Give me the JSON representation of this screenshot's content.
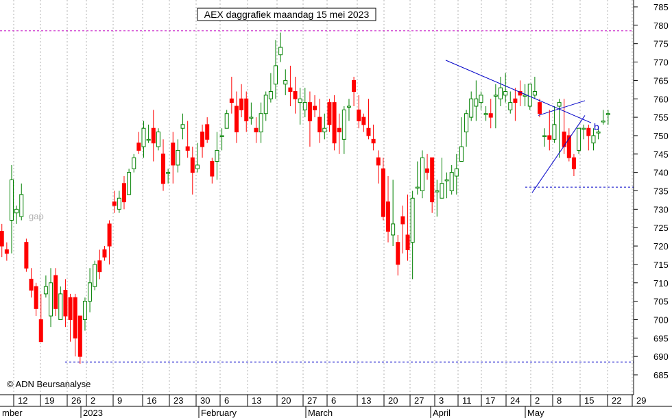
{
  "chart_data": {
    "type": "candlestick",
    "title": "AEX daggrafiek maandag 15 mei 2023",
    "watermark": "gap",
    "copyright": "© ADN Beursanalyse",
    "colors": {
      "up": "#008000",
      "down": "#ff0000",
      "grid": "#b0b0b0",
      "trend": "#0000c8",
      "resistance": "#c000c0",
      "support": "#0000c8"
    },
    "y_axis": {
      "min": 680,
      "max": 785,
      "step": 5,
      "side": "right"
    },
    "x_tick_labels": [
      "12",
      "19",
      "26",
      "2",
      "9",
      "16",
      "23",
      "30",
      "6",
      "13",
      "20",
      "27",
      "6",
      "13",
      "20",
      "27",
      "3",
      "11",
      "17",
      "24",
      "2",
      "8",
      "15",
      "22",
      "29"
    ],
    "month_labels": [
      "mber",
      "2023",
      "February",
      "March",
      "April",
      "May"
    ],
    "resistance_level": 778.5,
    "support_levels": [
      688.5,
      736
    ],
    "trend_label": "b",
    "candles": [
      [
        1,
        724,
        726,
        717,
        720
      ],
      [
        2,
        719,
        721,
        716,
        718
      ],
      [
        3,
        727,
        742,
        718,
        738
      ],
      [
        4,
        729,
        731,
        726,
        730
      ],
      [
        5,
        728,
        737,
        727,
        734
      ],
      [
        6,
        721,
        722,
        713,
        714
      ],
      [
        7,
        711,
        714,
        706,
        708
      ],
      [
        8,
        709,
        710,
        701,
        703
      ],
      [
        9,
        700,
        707,
        694,
        694
      ],
      [
        10,
        707,
        712,
        706,
        709
      ],
      [
        11,
        701,
        714,
        698,
        710
      ],
      [
        12,
        712,
        714,
        701,
        703
      ],
      [
        13,
        700,
        709,
        700,
        707
      ],
      [
        14,
        708,
        711,
        698,
        701
      ],
      [
        15,
        706,
        707,
        694,
        700
      ],
      [
        16,
        706,
        707,
        690,
        695
      ],
      [
        17,
        701,
        701,
        688,
        690
      ],
      [
        18,
        700,
        706,
        697,
        705
      ],
      [
        19,
        705,
        714,
        702,
        710
      ],
      [
        20,
        709,
        716,
        708,
        715
      ],
      [
        21,
        716,
        719,
        711,
        713
      ],
      [
        22,
        719,
        720,
        716,
        717
      ],
      [
        23,
        726,
        727,
        715,
        720
      ],
      [
        24,
        732,
        735,
        729,
        731
      ],
      [
        25,
        730,
        735,
        729,
        733
      ],
      [
        26,
        737,
        739,
        730,
        732
      ],
      [
        27,
        734,
        741,
        734,
        740
      ],
      [
        28,
        741,
        745,
        740,
        744
      ],
      [
        29,
        748,
        751,
        745,
        746
      ],
      [
        30,
        747,
        754,
        744,
        752
      ],
      [
        31,
        749,
        753,
        748,
        749
      ],
      [
        32,
        752,
        757,
        743,
        748
      ],
      [
        33,
        747,
        752,
        746,
        751
      ],
      [
        34,
        745,
        749,
        735,
        737
      ],
      [
        35,
        740,
        741,
        737,
        740
      ],
      [
        36,
        748,
        751,
        737,
        742
      ],
      [
        37,
        742,
        749,
        740,
        746
      ],
      [
        38,
        752,
        756,
        749,
        753
      ],
      [
        39,
        747,
        754,
        744,
        746
      ],
      [
        40,
        744,
        747,
        734,
        740
      ],
      [
        41,
        741,
        748,
        740,
        742
      ],
      [
        42,
        751,
        753,
        744,
        747
      ],
      [
        43,
        753,
        755,
        748,
        749
      ],
      [
        44,
        743,
        744,
        737,
        739
      ],
      [
        45,
        743,
        751,
        738,
        746
      ],
      [
        46,
        750,
        752,
        746,
        750
      ],
      [
        47,
        752,
        757,
        752,
        756
      ],
      [
        48,
        760,
        766,
        756,
        759
      ],
      [
        49,
        758,
        762,
        748,
        751
      ],
      [
        50,
        760,
        764,
        755,
        757
      ],
      [
        51,
        760,
        762,
        751,
        754
      ],
      [
        52,
        755,
        759,
        753,
        755
      ],
      [
        53,
        752,
        755,
        748,
        751
      ],
      [
        54,
        751,
        759,
        748,
        756
      ],
      [
        55,
        756,
        762,
        754,
        761
      ],
      [
        56,
        760,
        767,
        759,
        762
      ],
      [
        57,
        764,
        776,
        760,
        769
      ],
      [
        58,
        772,
        778,
        770,
        774
      ],
      [
        59,
        764,
        768,
        761,
        765
      ],
      [
        60,
        763,
        769,
        758,
        762
      ],
      [
        61,
        762,
        766,
        756,
        760
      ],
      [
        62,
        759,
        763,
        753,
        760
      ],
      [
        63,
        757,
        763,
        755,
        759
      ],
      [
        64,
        759,
        762,
        747,
        754
      ],
      [
        65,
        758,
        761,
        755,
        757
      ],
      [
        66,
        755,
        760,
        748,
        751
      ],
      [
        67,
        751,
        756,
        749,
        752
      ],
      [
        68,
        759,
        760,
        751,
        753
      ],
      [
        69,
        759,
        761,
        746,
        748
      ],
      [
        70,
        752,
        756,
        745,
        751
      ],
      [
        71,
        749,
        758,
        745,
        757
      ],
      [
        72,
        758,
        760,
        754,
        758
      ],
      [
        73,
        765,
        766,
        758,
        762
      ],
      [
        74,
        757,
        761,
        752,
        754
      ],
      [
        75,
        755,
        756,
        751,
        753
      ],
      [
        76,
        752,
        760,
        749,
        750
      ],
      [
        77,
        749,
        753,
        746,
        748
      ],
      [
        78,
        744,
        746,
        737,
        742
      ],
      [
        79,
        741,
        744,
        727,
        728
      ],
      [
        80,
        732,
        739,
        721,
        724
      ],
      [
        81,
        723,
        738,
        720,
        726
      ],
      [
        82,
        721,
        723,
        712,
        715
      ],
      [
        83,
        728,
        731,
        718,
        726
      ],
      [
        84,
        723,
        734,
        716,
        719
      ],
      [
        85,
        721,
        735,
        711,
        733
      ],
      [
        86,
        736,
        743,
        734,
        736
      ],
      [
        87,
        735,
        746,
        733,
        744
      ],
      [
        88,
        741,
        745,
        738,
        740
      ],
      [
        89,
        744,
        744,
        729,
        732
      ],
      [
        90,
        735,
        738,
        728,
        735
      ],
      [
        91,
        733,
        744,
        733,
        737
      ],
      [
        92,
        738,
        740,
        733,
        738
      ],
      [
        93,
        735,
        742,
        734,
        740
      ],
      [
        94,
        739,
        745,
        734,
        741
      ],
      [
        95,
        743,
        755,
        743,
        747
      ],
      [
        96,
        751,
        757,
        747,
        756
      ],
      [
        97,
        755,
        762,
        754,
        760
      ],
      [
        98,
        758,
        765,
        754,
        760
      ],
      [
        99,
        759,
        762,
        757,
        761
      ],
      [
        100,
        756,
        758,
        754,
        756
      ],
      [
        101,
        756,
        760,
        752,
        755
      ],
      [
        102,
        761,
        764,
        752,
        761
      ],
      [
        103,
        760,
        766,
        758,
        763
      ],
      [
        104,
        761,
        767,
        759,
        762
      ],
      [
        105,
        757,
        762,
        756,
        759
      ],
      [
        106,
        760,
        763,
        754,
        759
      ],
      [
        107,
        762,
        765,
        758,
        761
      ],
      [
        108,
        761,
        764,
        758,
        761
      ],
      [
        109,
        758,
        764,
        757,
        764
      ],
      [
        110,
        761,
        766,
        760,
        762
      ],
      [
        111,
        759,
        760,
        755,
        756
      ],
      [
        112,
        750,
        752,
        747,
        750
      ],
      [
        113,
        750,
        757,
        746,
        749
      ],
      [
        114,
        749,
        758,
        748,
        753
      ],
      [
        115,
        758,
        760,
        744,
        759
      ],
      [
        116,
        751,
        760,
        745,
        747
      ],
      [
        117,
        750,
        752,
        743,
        744
      ],
      [
        118,
        744,
        745,
        739,
        741
      ],
      [
        119,
        746,
        752,
        745,
        752
      ],
      [
        120,
        752,
        753,
        749,
        752
      ],
      [
        121,
        752,
        753,
        746,
        750
      ],
      [
        122,
        748,
        752,
        746,
        750
      ],
      [
        123,
        751,
        752,
        749,
        751
      ],
      [
        124,
        754,
        757,
        753,
        754
      ],
      [
        125,
        756,
        757,
        753,
        756
      ]
    ]
  }
}
